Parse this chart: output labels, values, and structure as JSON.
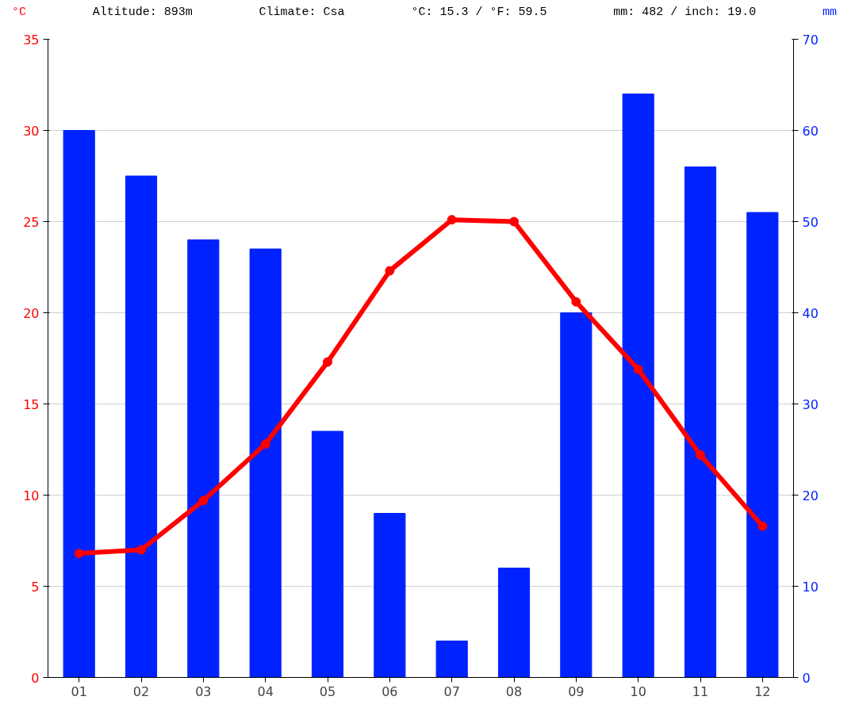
{
  "chart_data": {
    "type": "bar",
    "categories": [
      "01",
      "02",
      "03",
      "04",
      "05",
      "06",
      "07",
      "08",
      "09",
      "10",
      "11",
      "12"
    ],
    "ylabel": "°C",
    "y2label": "mm",
    "annotations": [
      "Altitude: 893m",
      "Climate: Csa",
      "°C: 15.3 / °F: 59.5",
      "mm: 482 / inch: 19.0"
    ],
    "series": [
      {
        "axis": "y2",
        "color": "#0022ff",
        "values": [
          60,
          55,
          48,
          47,
          27,
          18,
          4,
          12,
          40,
          64,
          56,
          51
        ]
      },
      {
        "type": "line",
        "color": "#ff0000",
        "marker": "circle",
        "values": [
          6.8,
          7.0,
          9.7,
          12.8,
          17.3,
          22.3,
          25.1,
          25.0,
          20.6,
          16.9,
          12.2,
          8.3
        ]
      }
    ],
    "ylim": [
      0,
      35
    ],
    "yticks": [
      0,
      5,
      10,
      15,
      20,
      25,
      30,
      35
    ],
    "y2lim": [
      0,
      70
    ],
    "y2ticks": [
      0,
      10,
      20,
      30,
      40,
      50,
      60,
      70
    ],
    "grid": "y"
  }
}
